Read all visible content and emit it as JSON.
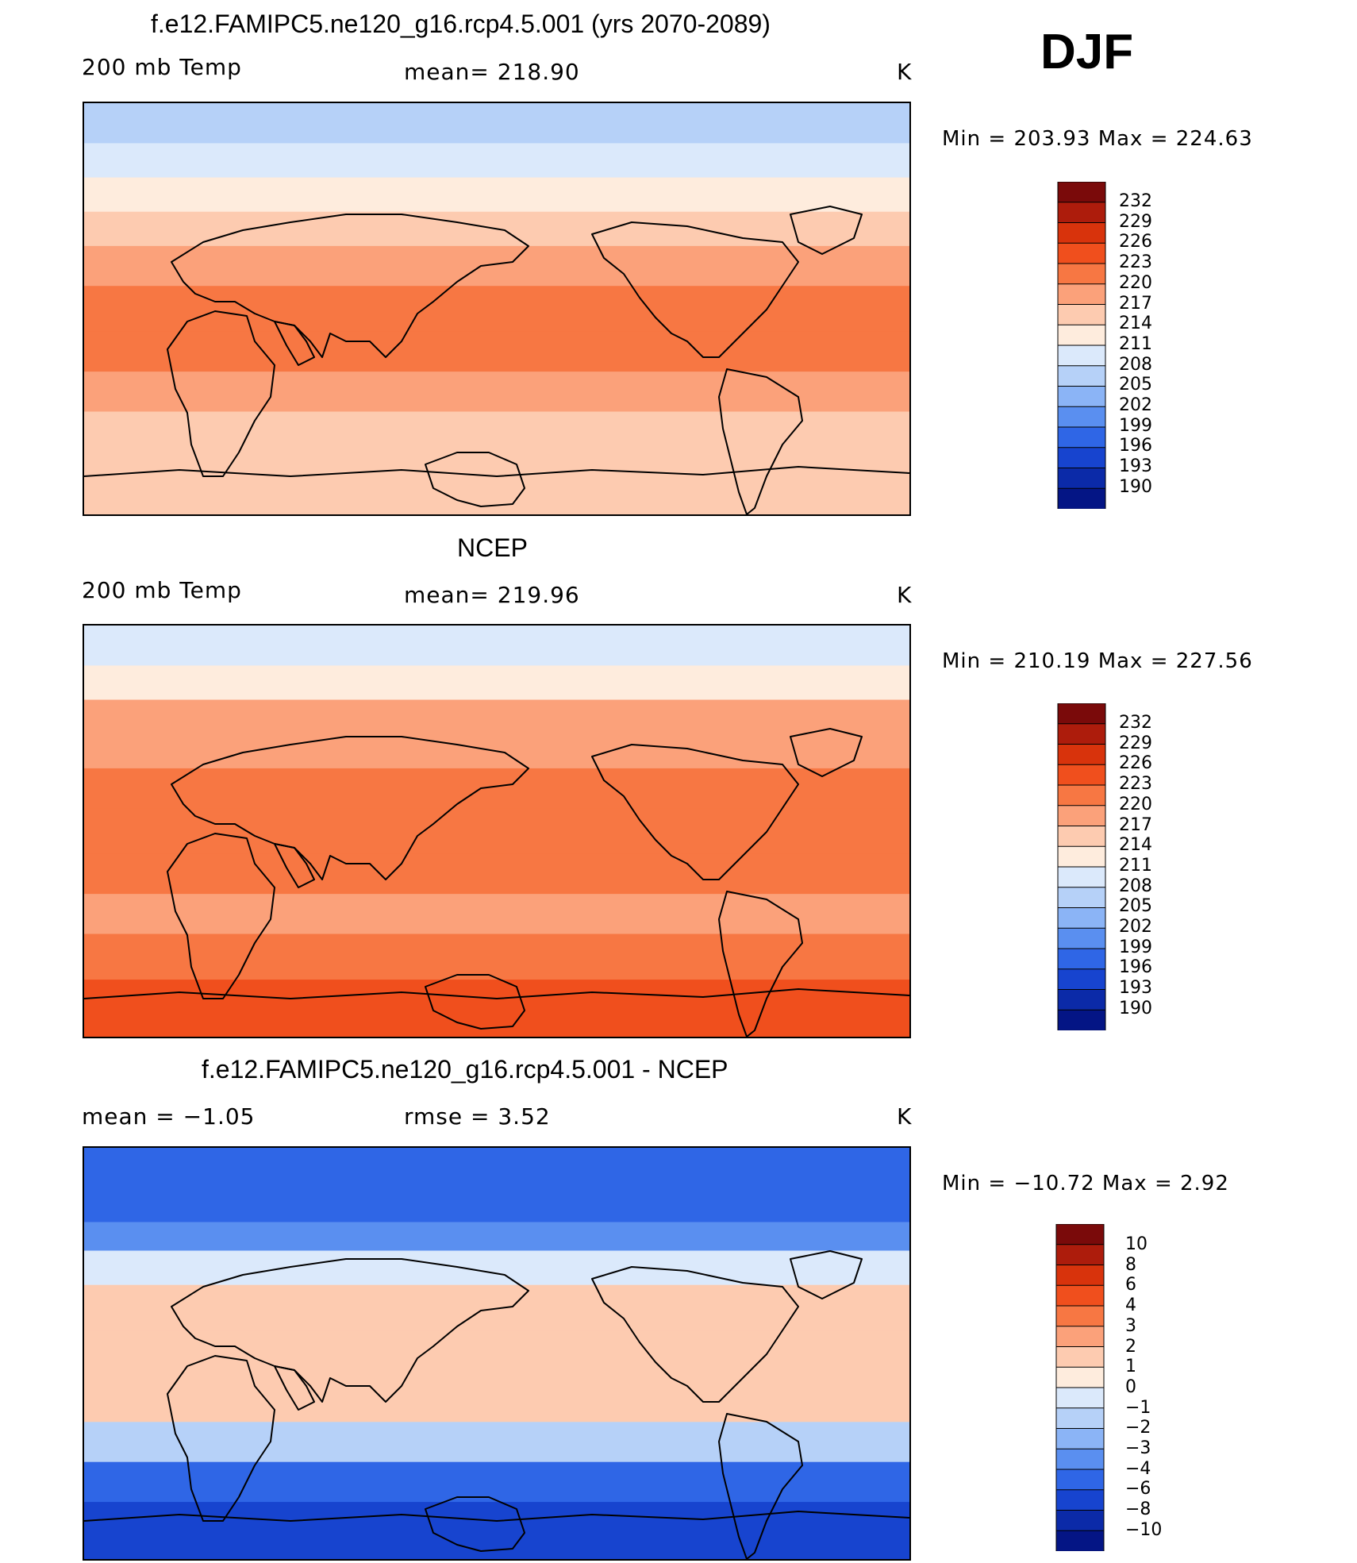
{
  "season": "DJF",
  "panels": [
    {
      "title": "f.e12.FAMIPC5.ne120_g16.rcp4.5.001 (yrs 2070-2089)",
      "left_label": "200 mb Temp",
      "center_label": "mean=  218.90",
      "right_label": "K",
      "min_max": "Min  =  203.93  Max  =  224.63",
      "levels": [
        "232",
        "229",
        "226",
        "223",
        "220",
        "217",
        "214",
        "211",
        "208",
        "205",
        "202",
        "199",
        "196",
        "193",
        "190"
      ]
    },
    {
      "title": "NCEP",
      "left_label": "200 mb Temp",
      "center_label": "mean=  219.96",
      "right_label": "K",
      "min_max": "Min  =  210.19  Max  =  227.56",
      "levels": [
        "232",
        "229",
        "226",
        "223",
        "220",
        "217",
        "214",
        "211",
        "208",
        "205",
        "202",
        "199",
        "196",
        "193",
        "190"
      ]
    },
    {
      "title": "f.e12.FAMIPC5.ne120_g16.rcp4.5.001 - NCEP",
      "left_label": "mean  =   −1.05",
      "center_label": "rmse  =     3.52",
      "right_label": "K",
      "min_max": "Min  =  −10.72  Max  =       2.92",
      "levels": [
        "10",
        "8",
        "6",
        "4",
        "3",
        "2",
        "1",
        "0",
        "−1",
        "−2",
        "−3",
        "−4",
        "−6",
        "−8",
        "−10"
      ]
    }
  ],
  "colors": {
    "scale": [
      "#7a0a0a",
      "#ad1c0c",
      "#d8330c",
      "#f04f1d",
      "#f77743",
      "#fba17a",
      "#fdcbb0",
      "#feecdd",
      "#dbe9fb",
      "#b6d1f8",
      "#8bb4f6",
      "#5a8ff0",
      "#2f66e6",
      "#1744cf",
      "#0b2aa8",
      "#041585"
    ],
    "land_outline": "#000000"
  },
  "chart_data": [
    {
      "type": "heatmap",
      "title": "f.e12.FAMIPC5.ne120_g16.rcp4.5.001 (yrs 2070-2089)",
      "variable": "200 mb Temp",
      "units": "K",
      "mean": 218.9,
      "min": 203.93,
      "max": 224.63,
      "contour_levels": [
        190,
        193,
        196,
        199,
        202,
        205,
        208,
        211,
        214,
        217,
        220,
        223,
        226,
        229,
        232
      ],
      "bands_by_latitude": [
        {
          "lat": 80,
          "value": 206
        },
        {
          "lat": 65,
          "value": 210
        },
        {
          "lat": 50,
          "value": 213
        },
        {
          "lat": 35,
          "value": 216
        },
        {
          "lat": 20,
          "value": 219
        },
        {
          "lat": 0,
          "value": 222
        },
        {
          "lat": -20,
          "value": 222
        },
        {
          "lat": -35,
          "value": 218
        },
        {
          "lat": -55,
          "value": 216
        },
        {
          "lat": -75,
          "value": 215
        }
      ]
    },
    {
      "type": "heatmap",
      "title": "NCEP",
      "variable": "200 mb Temp",
      "units": "K",
      "mean": 219.96,
      "min": 210.19,
      "max": 227.56,
      "contour_levels": [
        190,
        193,
        196,
        199,
        202,
        205,
        208,
        211,
        214,
        217,
        220,
        223,
        226,
        229,
        232
      ],
      "bands_by_latitude": [
        {
          "lat": 80,
          "value": 210
        },
        {
          "lat": 65,
          "value": 213
        },
        {
          "lat": 50,
          "value": 218
        },
        {
          "lat": 35,
          "value": 219
        },
        {
          "lat": 20,
          "value": 220
        },
        {
          "lat": 0,
          "value": 221
        },
        {
          "lat": -20,
          "value": 221
        },
        {
          "lat": -35,
          "value": 218
        },
        {
          "lat": -55,
          "value": 222
        },
        {
          "lat": -75,
          "value": 225
        }
      ]
    },
    {
      "type": "heatmap",
      "title": "f.e12.FAMIPC5.ne120_g16.rcp4.5.001 - NCEP",
      "units": "K",
      "mean": -1.05,
      "rmse": 3.52,
      "min": -10.72,
      "max": 2.92,
      "contour_levels": [
        -10,
        -8,
        -6,
        -4,
        -3,
        -2,
        -1,
        0,
        1,
        2,
        3,
        4,
        6,
        8,
        10
      ],
      "bands_by_latitude": [
        {
          "lat": 80,
          "value": -5
        },
        {
          "lat": 65,
          "value": -5
        },
        {
          "lat": 50,
          "value": -4
        },
        {
          "lat": 40,
          "value": -1
        },
        {
          "lat": 20,
          "value": 1.5
        },
        {
          "lat": 0,
          "value": 1.5
        },
        {
          "lat": -20,
          "value": 1
        },
        {
          "lat": -40,
          "value": -2
        },
        {
          "lat": -55,
          "value": -6
        },
        {
          "lat": -75,
          "value": -7
        }
      ]
    }
  ]
}
